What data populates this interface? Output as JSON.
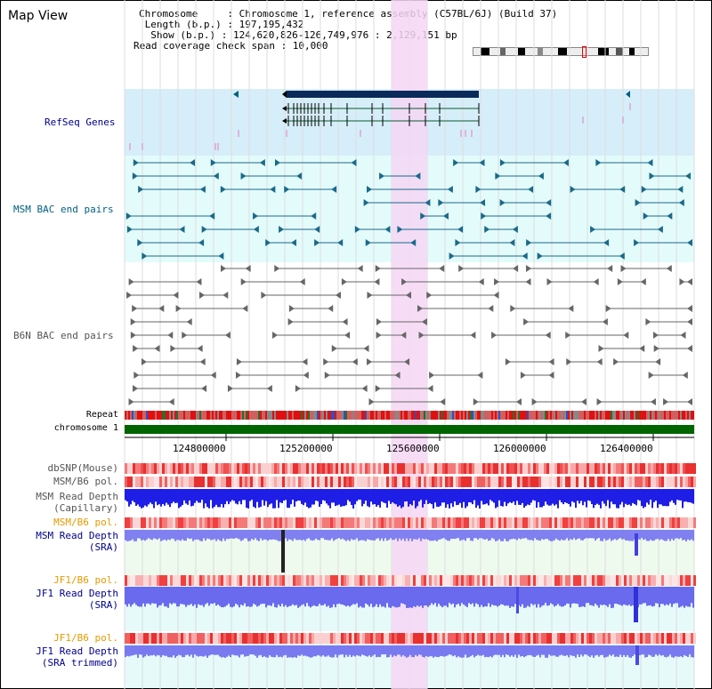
{
  "map_view": {
    "title": "Map View"
  },
  "info": {
    "line1": "Chromosome     : Chromosome 1, reference assembly (C57BL/6J) (Build 37)",
    "line2": " Length (b.p.) : 197,195,432",
    "line3": "  Show (b.p.) : 124,620,826-126,749,976 : 2,129,151 bp",
    "line4": "Read coverage check span : 10,000"
  },
  "tracks": {
    "refseq": "RefSeq Genes",
    "msm_bac": "MSM BAC end pairs",
    "b6n_bac": "B6N BAC end pairs",
    "repeat": "Repeat",
    "chromosome": "chromosome 1",
    "dbsnp": "dbSNP(Mouse)",
    "msm_b6_pol1": "MSM/B6 pol.",
    "msm_depth_cap_1": "MSM Read Depth",
    "msm_depth_cap_2": "(Capillary)",
    "msm_b6_pol2": "MSM/B6 pol.",
    "msm_depth_sra_1": "MSM Read Depth",
    "msm_depth_sra_2": "(SRA)",
    "jf1_b6_pol1": "JF1/B6 pol.",
    "jf1_depth_sra_1": "JF1 Read Depth",
    "jf1_depth_sra_2": "(SRA)",
    "jf1_b6_pol2": "JF1/B6 pol.",
    "jf1_depth_trim_1": "JF1 Read Depth",
    "jf1_depth_trim_2": "(SRA trimmed)"
  },
  "axis": {
    "ticks": [
      "124800000",
      "125200000",
      "125600000",
      "126000000",
      "126400000"
    ]
  },
  "colors": {
    "refseq_bg": "#d6eefa",
    "msm_bg": "#e4fbfb",
    "highlight": "#f6d6f4",
    "label_blue": "#00008b",
    "label_teal": "#006080",
    "label_gray": "#555555",
    "label_orange": "#e69a00",
    "chromosome_bar": "#006400",
    "depth_blue": "#1e1ee6",
    "depth_light": "#7a7af0"
  }
}
